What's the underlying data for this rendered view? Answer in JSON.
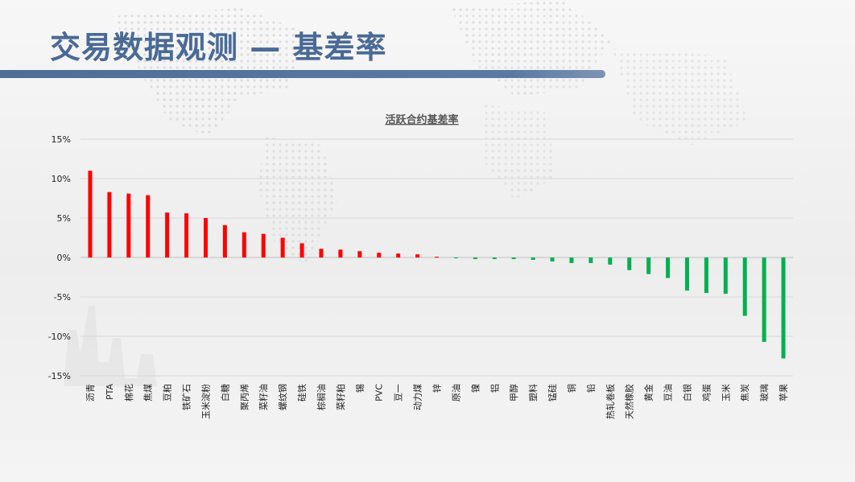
{
  "header": {
    "title": "交易数据观测 — 基差率"
  },
  "colors": {
    "title": "#4a6a96",
    "bar_positive": "#ff0000",
    "bar_negative": "#00b050",
    "grid": "#d9d9d9"
  },
  "chart_data": {
    "type": "bar",
    "title": "活跃合约基差率",
    "xlabel": "",
    "ylabel": "",
    "ylim": [
      -15,
      15
    ],
    "yticks": [
      "15%",
      "10%",
      "5%",
      "0%",
      "-5%",
      "-10%",
      "-15%"
    ],
    "ytick_values": [
      15,
      10,
      5,
      0,
      -5,
      -10,
      -15
    ],
    "grid": true,
    "categories": [
      "沥青",
      "PTA",
      "棉花",
      "焦煤",
      "豆粕",
      "铁矿石",
      "玉米淀粉",
      "白糖",
      "聚丙烯",
      "菜籽油",
      "螺纹钢",
      "硅铁",
      "棕榈油",
      "菜籽粕",
      "锡",
      "PVC",
      "豆一",
      "动力煤",
      "锌",
      "原油",
      "镍",
      "铝",
      "甲醇",
      "塑料",
      "锰硅",
      "铜",
      "铅",
      "热轧卷板",
      "天然橡胶",
      "黄金",
      "豆油",
      "白银",
      "鸡蛋",
      "玉米",
      "焦炭",
      "玻璃",
      "苹果"
    ],
    "values": [
      11.0,
      8.3,
      8.1,
      7.9,
      5.7,
      5.6,
      5.0,
      4.1,
      3.2,
      3.0,
      2.5,
      1.8,
      1.1,
      1.0,
      0.8,
      0.6,
      0.5,
      0.4,
      0.1,
      -0.1,
      -0.2,
      -0.2,
      -0.2,
      -0.3,
      -0.5,
      -0.7,
      -0.7,
      -0.9,
      -1.6,
      -2.1,
      -2.6,
      -4.2,
      -4.5,
      -4.6,
      -7.4,
      -10.7,
      -12.8
    ]
  }
}
